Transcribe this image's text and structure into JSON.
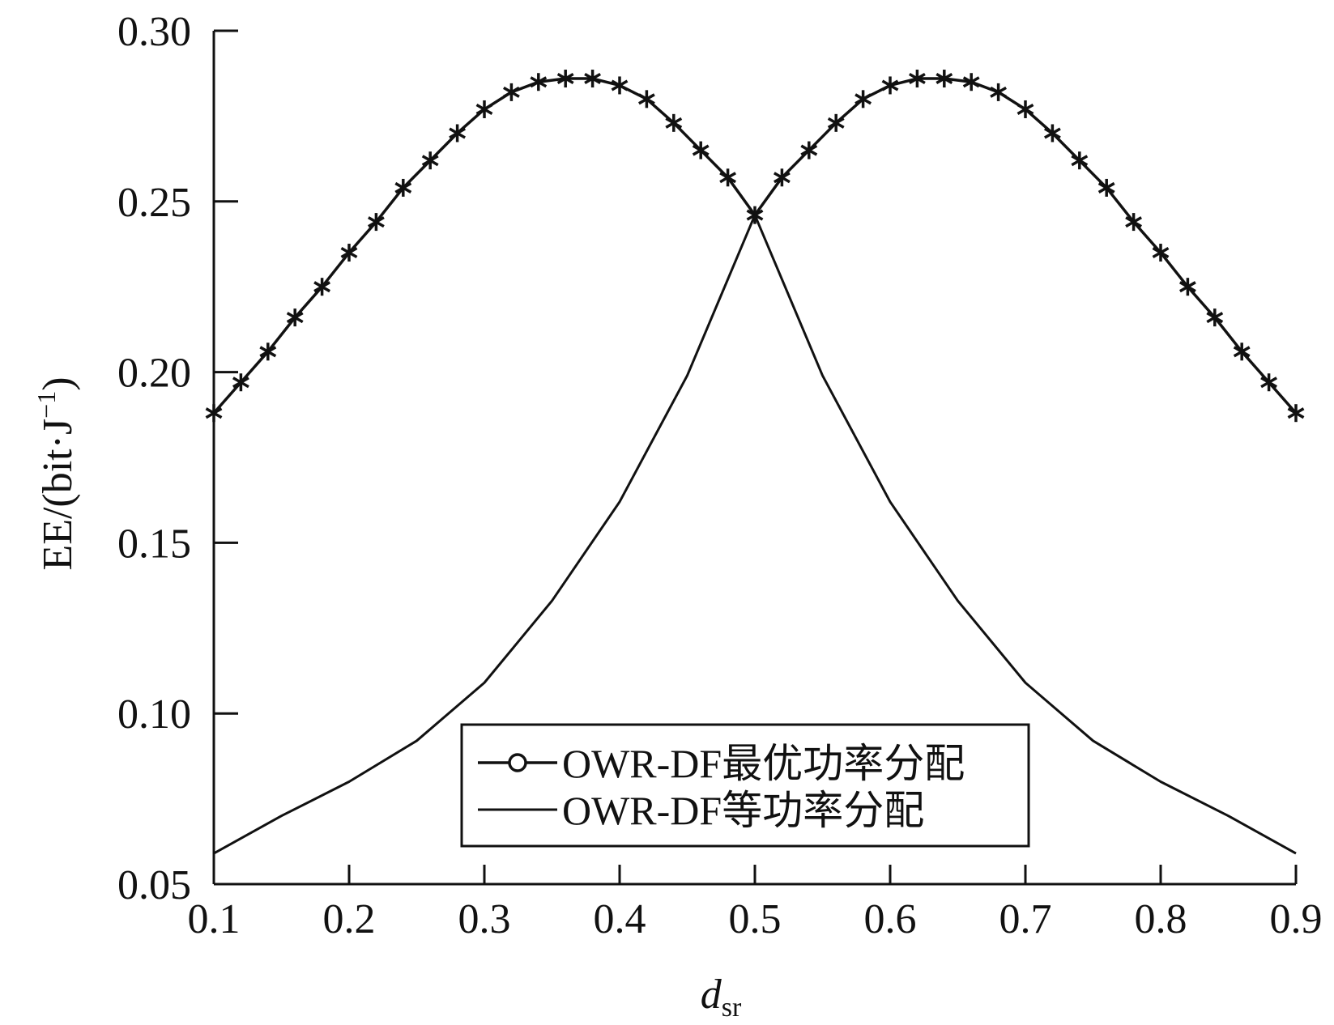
{
  "chart_data": {
    "type": "line",
    "xlabel_main": "d",
    "xlabel_sub": "sr",
    "ylabel_main": "EE/(bit·J",
    "ylabel_sup": "−1",
    "ylabel_close": ")",
    "xlim": [
      0.1,
      0.9
    ],
    "ylim": [
      0.05,
      0.3
    ],
    "xticks": [
      "0.1",
      "0.2",
      "0.3",
      "0.4",
      "0.5",
      "0.6",
      "0.7",
      "0.8",
      "0.9"
    ],
    "yticks": [
      "0.05",
      "0.10",
      "0.15",
      "0.20",
      "0.25",
      "0.30"
    ],
    "grid": false,
    "legend_position": "bottom-center",
    "line_color": "#111111",
    "series": [
      {
        "name": "OWR-DF最优功率分配",
        "marker": "asterisk",
        "x": [
          0.1,
          0.12,
          0.14,
          0.16,
          0.18,
          0.2,
          0.22,
          0.24,
          0.26,
          0.28,
          0.3,
          0.32,
          0.34,
          0.36,
          0.38,
          0.4,
          0.42,
          0.44,
          0.46,
          0.48,
          0.5,
          0.52,
          0.54,
          0.56,
          0.58,
          0.6,
          0.62,
          0.64,
          0.66,
          0.68,
          0.7,
          0.72,
          0.74,
          0.76,
          0.78,
          0.8,
          0.82,
          0.84,
          0.86,
          0.88,
          0.9
        ],
        "y": [
          0.188,
          0.197,
          0.206,
          0.216,
          0.225,
          0.235,
          0.244,
          0.254,
          0.262,
          0.27,
          0.277,
          0.282,
          0.285,
          0.286,
          0.286,
          0.284,
          0.28,
          0.273,
          0.265,
          0.257,
          0.246,
          0.257,
          0.265,
          0.273,
          0.28,
          0.284,
          0.286,
          0.286,
          0.285,
          0.282,
          0.277,
          0.27,
          0.262,
          0.254,
          0.244,
          0.235,
          0.225,
          0.216,
          0.206,
          0.197,
          0.188
        ]
      },
      {
        "name": "OWR-DF等功率分配",
        "marker": "none",
        "x": [
          0.1,
          0.15,
          0.2,
          0.25,
          0.3,
          0.35,
          0.4,
          0.45,
          0.5,
          0.55,
          0.6,
          0.65,
          0.7,
          0.75,
          0.8,
          0.85,
          0.9
        ],
        "y": [
          0.059,
          0.07,
          0.08,
          0.092,
          0.109,
          0.133,
          0.162,
          0.199,
          0.246,
          0.199,
          0.162,
          0.133,
          0.109,
          0.092,
          0.08,
          0.07,
          0.059
        ]
      }
    ]
  }
}
